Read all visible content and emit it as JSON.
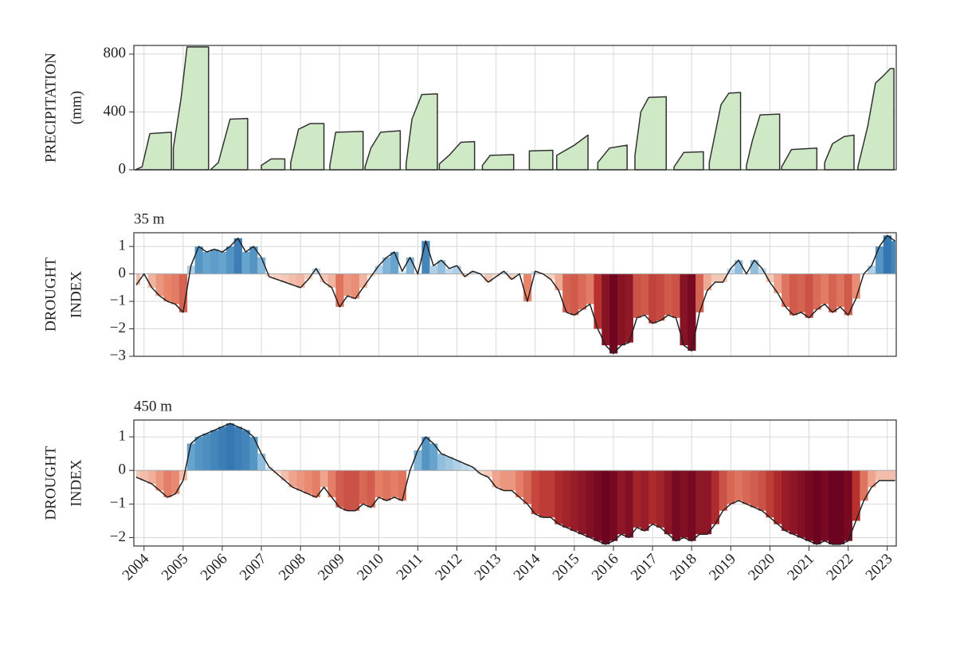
{
  "chart_data": [
    {
      "type": "area",
      "ylabel": [
        "PRECIPITATION",
        "(mm)"
      ],
      "color": "#cfe8c6",
      "line_color": "#333333",
      "xlim": [
        2003.74,
        2023.23
      ],
      "ylim": [
        0,
        860
      ],
      "yticks": [
        0,
        400,
        800
      ],
      "grid": true,
      "x": [
        2003.78,
        2003.95,
        2004.15,
        2004.7,
        null,
        2004.75,
        2004.95,
        2005.1,
        2005.65,
        null,
        2005.7,
        2005.9,
        2006.05,
        2006.2,
        2006.65,
        null,
        2007.0,
        2007.25,
        2007.6,
        null,
        2007.75,
        2007.95,
        2008.25,
        2008.6,
        null,
        2008.75,
        2008.9,
        2009.6,
        null,
        2009.65,
        2009.8,
        2010.05,
        2010.55,
        null,
        2010.7,
        2010.85,
        2011.1,
        2011.5,
        null,
        2011.55,
        2011.8,
        2012.1,
        2012.45,
        null,
        2012.65,
        2012.85,
        2013.45,
        null,
        2013.85,
        2014.45,
        null,
        2014.55,
        2015.0,
        2015.2,
        2015.35,
        null,
        2015.6,
        2015.9,
        2016.35,
        null,
        2016.55,
        2016.7,
        2016.9,
        2017.35,
        null,
        2017.55,
        2017.8,
        2018.3,
        null,
        2018.45,
        2018.75,
        2018.95,
        2019.25,
        null,
        2019.4,
        2019.55,
        2019.75,
        2020.25,
        null,
        2020.3,
        2020.55,
        2021.2,
        null,
        2021.4,
        2021.6,
        2021.9,
        2022.15,
        null,
        2022.25,
        2022.5,
        2022.7,
        2022.9,
        2023.08,
        2023.17
      ],
      "values": [
        0,
        20,
        250,
        260,
        null,
        150,
        500,
        850,
        850,
        null,
        0,
        50,
        200,
        350,
        355,
        null,
        30,
        75,
        75,
        null,
        50,
        280,
        320,
        320,
        null,
        30,
        260,
        265,
        null,
        20,
        150,
        260,
        270,
        null,
        40,
        350,
        520,
        525,
        null,
        40,
        100,
        190,
        195,
        null,
        30,
        100,
        105,
        null,
        130,
        135,
        null,
        100,
        170,
        210,
        240,
        null,
        50,
        150,
        170,
        null,
        100,
        400,
        500,
        505,
        null,
        20,
        120,
        125,
        null,
        50,
        450,
        530,
        535,
        null,
        30,
        200,
        380,
        385,
        null,
        20,
        140,
        150,
        null,
        50,
        180,
        230,
        240,
        null,
        20,
        300,
        600,
        650,
        700,
        700
      ]
    },
    {
      "type": "line",
      "title": "35 m",
      "ylabel": [
        "DROUGHT",
        "INDEX"
      ],
      "line_color": "#222222",
      "colormap": {
        "negative": [
          "#fbe3d6",
          "#e7846a",
          "#b8312f",
          "#67001f"
        ],
        "positive": [
          "#deebf7",
          "#6aa8d0",
          "#2c6fac"
        ]
      },
      "xlim": [
        2003.74,
        2023.23
      ],
      "ylim": [
        -3,
        1.5
      ],
      "grid": true,
      "yticks": [
        {
          "value": -3,
          "label": "−3"
        },
        {
          "value": -2,
          "label": "−2"
        },
        {
          "value": -1,
          "label": "−1"
        },
        0,
        1
      ],
      "x": [
        2003.8,
        2004,
        2004.2,
        2004.4,
        2004.6,
        2004.8,
        2005,
        2005.2,
        2005.4,
        2005.6,
        2005.8,
        2006,
        2006.2,
        2006.4,
        2006.6,
        2006.8,
        2007,
        2007.2,
        2007.4,
        2007.6,
        2007.8,
        2008,
        2008.2,
        2008.4,
        2008.6,
        2008.8,
        2009,
        2009.2,
        2009.4,
        2009.6,
        2009.8,
        2010,
        2010.2,
        2010.4,
        2010.6,
        2010.8,
        2011,
        2011.2,
        2011.4,
        2011.6,
        2011.8,
        2012,
        2012.2,
        2012.4,
        2012.6,
        2012.8,
        2013,
        2013.2,
        2013.4,
        2013.6,
        2013.8,
        2014,
        2014.2,
        2014.4,
        2014.6,
        2014.8,
        2015,
        2015.2,
        2015.4,
        2015.6,
        2015.8,
        2016,
        2016.2,
        2016.4,
        2016.6,
        2016.8,
        2017,
        2017.2,
        2017.4,
        2017.6,
        2017.8,
        2018,
        2018.2,
        2018.4,
        2018.6,
        2018.8,
        2019,
        2019.2,
        2019.4,
        2019.6,
        2019.8,
        2020,
        2020.2,
        2020.4,
        2020.6,
        2020.8,
        2021,
        2021.2,
        2021.4,
        2021.6,
        2021.8,
        2022,
        2022.2,
        2022.4,
        2022.6,
        2022.8,
        2023,
        2023.2
      ],
      "values": [
        -0.4,
        0.0,
        -0.5,
        -0.8,
        -1.0,
        -1.1,
        -1.4,
        0.3,
        1.0,
        0.8,
        0.9,
        0.8,
        1.0,
        1.3,
        0.8,
        1.0,
        0.6,
        -0.1,
        -0.2,
        -0.3,
        -0.4,
        -0.5,
        -0.2,
        0.2,
        -0.3,
        -0.5,
        -1.2,
        -0.8,
        -0.9,
        -0.5,
        -0.1,
        0.3,
        0.6,
        0.8,
        0.1,
        0.6,
        0.0,
        1.2,
        0.3,
        0.5,
        0.2,
        0.3,
        -0.1,
        0.1,
        0.0,
        -0.3,
        -0.1,
        0.1,
        -0.2,
        0.0,
        -1.0,
        0.1,
        0.0,
        -0.2,
        -0.6,
        -1.4,
        -1.5,
        -1.3,
        -1.1,
        -2.0,
        -2.6,
        -2.9,
        -2.6,
        -2.5,
        -1.6,
        -1.5,
        -1.8,
        -1.7,
        -1.5,
        -1.6,
        -2.6,
        -2.8,
        -1.4,
        -0.6,
        -0.3,
        -0.3,
        0.2,
        0.5,
        0.0,
        0.5,
        0.2,
        -0.3,
        -0.7,
        -1.2,
        -1.5,
        -1.4,
        -1.6,
        -1.3,
        -1.1,
        -1.4,
        -1.2,
        -1.5,
        -0.9,
        0.0,
        0.3,
        1.0,
        1.4,
        1.2
      ]
    },
    {
      "type": "line",
      "title": "450 m",
      "ylabel": [
        "DROUGHT",
        "INDEX"
      ],
      "line_color": "#222222",
      "colormap": {
        "negative": [
          "#fbe3d6",
          "#e7846a",
          "#b8312f",
          "#67001f"
        ],
        "positive": [
          "#deebf7",
          "#6aa8d0",
          "#2c6fac"
        ]
      },
      "xlim": [
        2003.74,
        2023.23
      ],
      "ylim": [
        -2.25,
        1.5
      ],
      "grid": true,
      "yticks": [
        {
          "value": -2,
          "label": "−2"
        },
        {
          "value": -1,
          "label": "−1"
        },
        0,
        1
      ],
      "xticks": [
        2004,
        2005,
        2006,
        2007,
        2008,
        2009,
        2010,
        2011,
        2012,
        2013,
        2014,
        2015,
        2016,
        2017,
        2018,
        2019,
        2020,
        2021,
        2022,
        2023
      ],
      "x": [
        2003.8,
        2004,
        2004.2,
        2004.4,
        2004.6,
        2004.8,
        2005,
        2005.2,
        2005.4,
        2005.6,
        2005.8,
        2006,
        2006.2,
        2006.4,
        2006.6,
        2006.8,
        2007,
        2007.2,
        2007.4,
        2007.6,
        2007.8,
        2008,
        2008.2,
        2008.4,
        2008.6,
        2008.8,
        2009,
        2009.2,
        2009.4,
        2009.6,
        2009.8,
        2010,
        2010.2,
        2010.4,
        2010.6,
        2010.8,
        2011,
        2011.2,
        2011.4,
        2011.6,
        2011.8,
        2012,
        2012.2,
        2012.4,
        2012.6,
        2012.8,
        2013,
        2013.2,
        2013.4,
        2013.6,
        2013.8,
        2014,
        2014.2,
        2014.4,
        2014.6,
        2014.8,
        2015,
        2015.2,
        2015.4,
        2015.6,
        2015.8,
        2016,
        2016.2,
        2016.4,
        2016.6,
        2016.8,
        2017,
        2017.2,
        2017.4,
        2017.6,
        2017.8,
        2018,
        2018.2,
        2018.4,
        2018.6,
        2018.8,
        2019,
        2019.2,
        2019.4,
        2019.6,
        2019.8,
        2020,
        2020.2,
        2020.4,
        2020.6,
        2020.8,
        2021,
        2021.2,
        2021.4,
        2021.6,
        2021.8,
        2022,
        2022.2,
        2022.4,
        2022.6,
        2022.8,
        2023,
        2023.2
      ],
      "values": [
        -0.2,
        -0.3,
        -0.4,
        -0.6,
        -0.8,
        -0.7,
        -0.3,
        0.8,
        1.0,
        1.1,
        1.2,
        1.3,
        1.4,
        1.3,
        1.2,
        1.0,
        0.5,
        0.1,
        -0.1,
        -0.3,
        -0.5,
        -0.6,
        -0.7,
        -0.8,
        -0.5,
        -0.8,
        -1.1,
        -1.2,
        -1.2,
        -1.0,
        -1.1,
        -0.8,
        -0.9,
        -0.8,
        -0.9,
        0.0,
        0.6,
        1.0,
        0.8,
        0.5,
        0.4,
        0.3,
        0.2,
        0.1,
        -0.1,
        -0.2,
        -0.5,
        -0.6,
        -0.6,
        -0.8,
        -1.0,
        -1.3,
        -1.4,
        -1.4,
        -1.6,
        -1.7,
        -1.8,
        -1.9,
        -2.0,
        -2.1,
        -2.2,
        -2.1,
        -1.9,
        -2.0,
        -1.7,
        -1.8,
        -1.6,
        -1.7,
        -1.9,
        -2.1,
        -2.0,
        -2.1,
        -1.9,
        -1.9,
        -1.6,
        -1.2,
        -1.0,
        -0.9,
        -1.0,
        -1.1,
        -1.2,
        -1.4,
        -1.6,
        -1.8,
        -1.9,
        -2.0,
        -2.1,
        -2.2,
        -2.1,
        -2.2,
        -2.2,
        -2.1,
        -1.5,
        -0.9,
        -0.5,
        -0.3,
        -0.3,
        -0.3
      ]
    }
  ]
}
